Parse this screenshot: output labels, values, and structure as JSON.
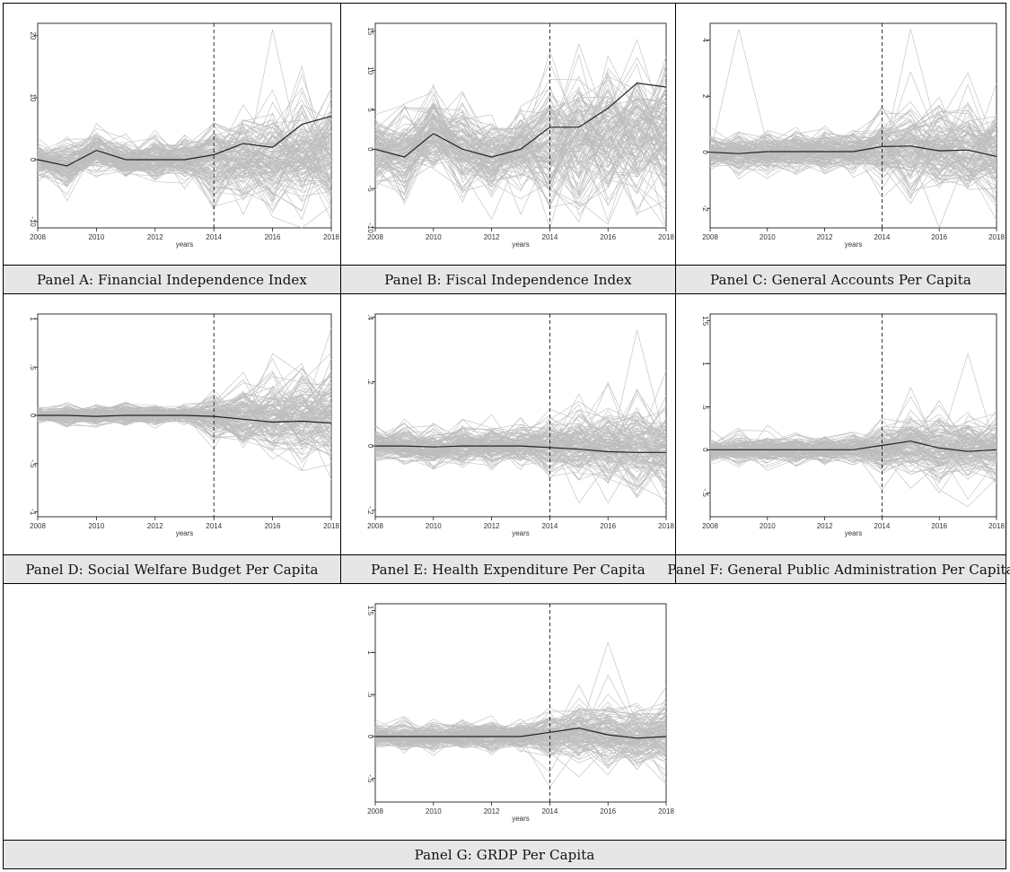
{
  "colors": {
    "frame": "#000000",
    "caption_bg": "#e6e6e6",
    "individual_line": "#bdbdbd",
    "mean_line": "#222222",
    "reference_line": "#000000"
  },
  "chart_data": [
    {
      "id": "A",
      "type": "line",
      "caption": "Panel A: Financial Independence Index",
      "xlabel": "years",
      "ylabel": "",
      "x_ticks": [
        "2008",
        "2010",
        "2012",
        "2014",
        "2016",
        "2018"
      ],
      "y_ticks": [
        "-10",
        "0",
        "10",
        "20"
      ],
      "y_tick_values": [
        -10,
        0,
        10,
        20
      ],
      "xlim": [
        2008,
        2018
      ],
      "ylim": [
        -11,
        22
      ],
      "reference_x": 2014,
      "x": [
        2008,
        2009,
        2010,
        2011,
        2012,
        2013,
        2014,
        2015,
        2016,
        2017,
        2018
      ],
      "mean_series": [
        0,
        -1,
        1.5,
        0,
        0,
        0,
        0.8,
        2.6,
        2,
        5.7,
        7
      ],
      "background_series": {
        "count": 120,
        "pre_spread": 1.6,
        "post_spread": [
          3.5,
          4.0,
          4.5,
          5.0
        ],
        "post_trend": -1.5,
        "outlier_peak": 21
      }
    },
    {
      "id": "B",
      "type": "line",
      "caption": "Panel B: Fiscal Independence Index",
      "xlabel": "years",
      "ylabel": "",
      "x_ticks": [
        "2008",
        "2010",
        "2012",
        "2014",
        "2016",
        "2018"
      ],
      "y_ticks": [
        "-10",
        "-5",
        "0",
        "5",
        "10",
        "15"
      ],
      "y_tick_values": [
        -10,
        -5,
        0,
        5,
        10,
        15
      ],
      "xlim": [
        2008,
        2018
      ],
      "ylim": [
        -10,
        16
      ],
      "reference_x": 2014,
      "x": [
        2008,
        2009,
        2010,
        2011,
        2012,
        2013,
        2014,
        2015,
        2016,
        2017,
        2018
      ],
      "mean_series": [
        0,
        -1,
        2,
        0,
        -1,
        0,
        2.8,
        2.8,
        5.2,
        8.4,
        7.9
      ],
      "background_series": {
        "count": 120,
        "pre_spread": 2.5,
        "post_spread": [
          4,
          4.5,
          4.5,
          5,
          5
        ],
        "post_trend": -0.5,
        "outlier_peak": 12
      }
    },
    {
      "id": "C",
      "type": "line",
      "caption": "Panel C: General Accounts Per Capita",
      "xlabel": "years",
      "ylabel": "",
      "x_ticks": [
        "2008",
        "2010",
        "2012",
        "2014",
        "2016",
        "2018"
      ],
      "y_ticks": [
        "-2",
        "0",
        "2",
        "4"
      ],
      "y_tick_values": [
        -2,
        0,
        2,
        4
      ],
      "xlim": [
        2008,
        2018
      ],
      "ylim": [
        -2.7,
        4.6
      ],
      "reference_x": 2014,
      "x": [
        2008,
        2009,
        2010,
        2011,
        2012,
        2013,
        2014,
        2015,
        2016,
        2017,
        2018
      ],
      "mean_series": [
        0,
        -0.05,
        0.02,
        0.02,
        0.02,
        0.02,
        0.2,
        0.22,
        0.05,
        0.08,
        -0.15
      ],
      "background_series": {
        "count": 120,
        "pre_spread": 0.35,
        "post_spread": [
          0.7,
          0.8,
          0.9,
          0.9
        ],
        "post_trend": 0,
        "outlier_peak": 4.4
      }
    },
    {
      "id": "D",
      "type": "line",
      "caption": "Panel D: Social Welfare Budget Per Capita",
      "xlabel": "years",
      "ylabel": "",
      "x_ticks": [
        "2008",
        "2010",
        "2012",
        "2014",
        "2016",
        "2018"
      ],
      "y_ticks": [
        "-1",
        "-.5",
        "0",
        ".5",
        "1"
      ],
      "y_tick_values": [
        -1,
        -0.5,
        0,
        0.5,
        1
      ],
      "xlim": [
        2008,
        2018
      ],
      "ylim": [
        -1.05,
        1.05
      ],
      "reference_x": 2014,
      "x": [
        2008,
        2009,
        2010,
        2011,
        2012,
        2013,
        2014,
        2015,
        2016,
        2017,
        2018
      ],
      "mean_series": [
        0,
        0,
        -0.01,
        0,
        0,
        0,
        -0.01,
        -0.04,
        -0.07,
        -0.06,
        -0.08
      ],
      "background_series": {
        "count": 120,
        "pre_spread": 0.05,
        "post_spread": [
          0.12,
          0.17,
          0.22,
          0.27
        ],
        "post_trend": 0,
        "outlier_peak": 0.9
      }
    },
    {
      "id": "E",
      "type": "line",
      "caption": "Panel E: Health Expenditure Per Capita",
      "xlabel": "years",
      "ylabel": "",
      "x_ticks": [
        "2008",
        "2010",
        "2012",
        "2014",
        "2016",
        "2018"
      ],
      "y_ticks": [
        "-.2",
        "0",
        ".2",
        ".4"
      ],
      "y_tick_values": [
        -0.2,
        0,
        0.2,
        0.4
      ],
      "xlim": [
        2008,
        2018
      ],
      "ylim": [
        -0.22,
        0.41
      ],
      "reference_x": 2014,
      "x": [
        2008,
        2009,
        2010,
        2011,
        2012,
        2013,
        2014,
        2015,
        2016,
        2017,
        2018
      ],
      "mean_series": [
        0,
        0,
        -0.003,
        0,
        0,
        0,
        -0.005,
        -0.01,
        -0.018,
        -0.02,
        -0.02
      ],
      "background_series": {
        "count": 120,
        "pre_spread": 0.03,
        "post_spread": [
          0.05,
          0.06,
          0.07,
          0.07
        ],
        "post_trend": 0,
        "outlier_peak": 0.36
      }
    },
    {
      "id": "F",
      "type": "line",
      "caption": "Panel F: General Public Administration Per Capita",
      "xlabel": "years",
      "ylabel": "",
      "x_ticks": [
        "2008",
        "2010",
        "2012",
        "2014",
        "2016",
        "2018"
      ],
      "y_ticks": [
        "-.5",
        "0",
        ".5",
        "1",
        "1.5"
      ],
      "y_tick_values": [
        -0.5,
        0,
        0.5,
        1,
        1.5
      ],
      "xlim": [
        2008,
        2018
      ],
      "ylim": [
        -0.78,
        1.58
      ],
      "reference_x": 2014,
      "x": [
        2008,
        2009,
        2010,
        2011,
        2012,
        2013,
        2014,
        2015,
        2016,
        2017,
        2018
      ],
      "mean_series": [
        0,
        0,
        0,
        0,
        0,
        0,
        0.05,
        0.1,
        0.02,
        -0.02,
        0
      ],
      "background_series": {
        "count": 120,
        "pre_spread": 0.08,
        "post_spread": [
          0.15,
          0.18,
          0.2,
          0.2
        ],
        "post_trend": 0,
        "outlier_peak": 1.12
      }
    },
    {
      "id": "G",
      "type": "line",
      "caption": "Panel G: GRDP Per Capita",
      "xlabel": "years",
      "ylabel": "",
      "x_ticks": [
        "2008",
        "2010",
        "2012",
        "2014",
        "2016",
        "2018"
      ],
      "y_ticks": [
        "-.5",
        "0",
        ".5",
        "1",
        "1.5"
      ],
      "y_tick_values": [
        -0.5,
        0,
        0.5,
        1,
        1.5
      ],
      "xlim": [
        2008,
        2018
      ],
      "ylim": [
        -0.78,
        1.58
      ],
      "reference_x": 2014,
      "x": [
        2008,
        2009,
        2010,
        2011,
        2012,
        2013,
        2014,
        2015,
        2016,
        2017,
        2018
      ],
      "mean_series": [
        0,
        0,
        0,
        0,
        0,
        0,
        0.05,
        0.1,
        0.02,
        -0.02,
        0
      ],
      "background_series": {
        "count": 120,
        "pre_spread": 0.08,
        "post_spread": [
          0.15,
          0.18,
          0.2,
          0.2
        ],
        "post_trend": 0,
        "outlier_peak": 1.12
      }
    }
  ]
}
